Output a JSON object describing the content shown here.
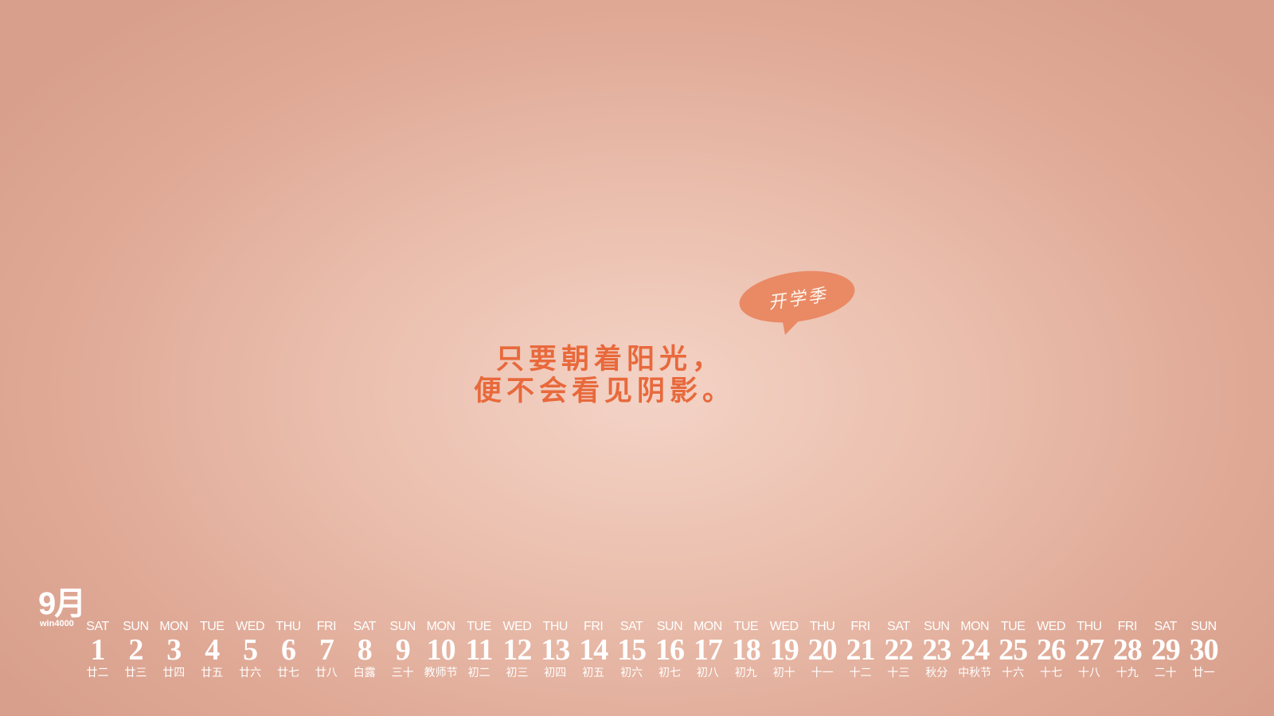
{
  "bubble": {
    "text": "开学季",
    "color": "#e98a65"
  },
  "slogan": {
    "line1": "只要朝着阳光，",
    "line2": "便不会看见阴影。",
    "color": "#e8693c"
  },
  "month": {
    "label": "9月",
    "brand": "win4000"
  },
  "days": [
    {
      "dow": "SAT",
      "num": "1",
      "lunar": "廿二"
    },
    {
      "dow": "SUN",
      "num": "2",
      "lunar": "廿三"
    },
    {
      "dow": "MON",
      "num": "3",
      "lunar": "廿四"
    },
    {
      "dow": "TUE",
      "num": "4",
      "lunar": "廿五"
    },
    {
      "dow": "WED",
      "num": "5",
      "lunar": "廿六"
    },
    {
      "dow": "THU",
      "num": "6",
      "lunar": "廿七"
    },
    {
      "dow": "FRI",
      "num": "7",
      "lunar": "廿八"
    },
    {
      "dow": "SAT",
      "num": "8",
      "lunar": "白露"
    },
    {
      "dow": "SUN",
      "num": "9",
      "lunar": "三十"
    },
    {
      "dow": "MON",
      "num": "10",
      "lunar": "教师节"
    },
    {
      "dow": "TUE",
      "num": "11",
      "lunar": "初二"
    },
    {
      "dow": "WED",
      "num": "12",
      "lunar": "初三"
    },
    {
      "dow": "THU",
      "num": "13",
      "lunar": "初四"
    },
    {
      "dow": "FRI",
      "num": "14",
      "lunar": "初五"
    },
    {
      "dow": "SAT",
      "num": "15",
      "lunar": "初六"
    },
    {
      "dow": "SUN",
      "num": "16",
      "lunar": "初七"
    },
    {
      "dow": "MON",
      "num": "17",
      "lunar": "初八"
    },
    {
      "dow": "TUE",
      "num": "18",
      "lunar": "初九"
    },
    {
      "dow": "WED",
      "num": "19",
      "lunar": "初十"
    },
    {
      "dow": "THU",
      "num": "20",
      "lunar": "十一"
    },
    {
      "dow": "FRI",
      "num": "21",
      "lunar": "十二"
    },
    {
      "dow": "SAT",
      "num": "22",
      "lunar": "十三"
    },
    {
      "dow": "SUN",
      "num": "23",
      "lunar": "秋分"
    },
    {
      "dow": "MON",
      "num": "24",
      "lunar": "中秋节"
    },
    {
      "dow": "TUE",
      "num": "25",
      "lunar": "十六"
    },
    {
      "dow": "WED",
      "num": "26",
      "lunar": "十七"
    },
    {
      "dow": "THU",
      "num": "27",
      "lunar": "十八"
    },
    {
      "dow": "FRI",
      "num": "28",
      "lunar": "十九"
    },
    {
      "dow": "SAT",
      "num": "29",
      "lunar": "二十"
    },
    {
      "dow": "SUN",
      "num": "30",
      "lunar": "廿一"
    }
  ]
}
